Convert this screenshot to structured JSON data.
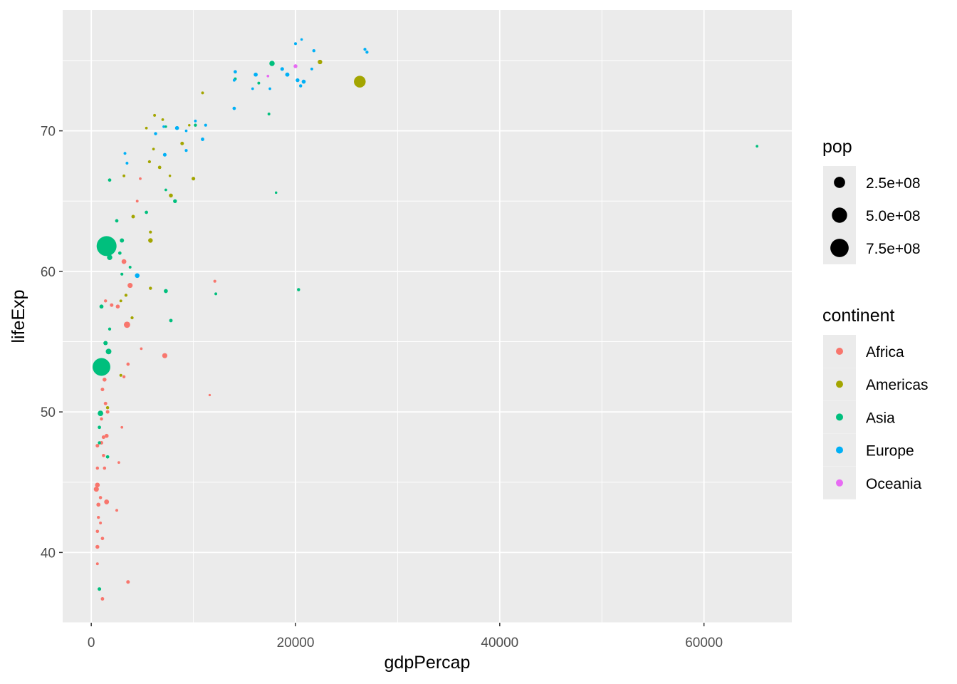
{
  "chart_data": {
    "type": "scatter",
    "title": "",
    "xlabel": "gdpPercap",
    "ylabel": "lifeExp",
    "xlim": [
      -2800,
      68600
    ],
    "ylim": [
      35,
      78.6
    ],
    "x_ticks": [
      0,
      20000,
      40000,
      60000
    ],
    "y_ticks": [
      40,
      50,
      60,
      70
    ],
    "grid": true,
    "size_legend": {
      "title": "pop",
      "entries": [
        {
          "label": "2.5e+08",
          "value": 250000000
        },
        {
          "label": "5.0e+08",
          "value": 500000000
        },
        {
          "label": "7.5e+08",
          "value": 750000000
        }
      ]
    },
    "color_legend": {
      "title": "continent",
      "entries": [
        {
          "label": "Africa",
          "color": "#F8766D"
        },
        {
          "label": "Americas",
          "color": "#A3A500"
        },
        {
          "label": "Asia",
          "color": "#00BF7D"
        },
        {
          "label": "Europe",
          "color": "#00B0F6"
        },
        {
          "label": "Oceania",
          "color": "#E76BF3"
        }
      ]
    },
    "series": [
      {
        "name": "Africa",
        "points": [
          [
            3200,
            60.7,
            30000000.0
          ],
          [
            2000,
            57.6,
            12000000.0
          ],
          [
            1400,
            57.9,
            8000000.0
          ],
          [
            2600,
            57.5,
            17000000.0
          ],
          [
            3800,
            59.0,
            35000000.0
          ],
          [
            3500,
            56.2,
            62000000.0
          ],
          [
            4500,
            65.0,
            5000000.0
          ],
          [
            4800,
            66.6,
            4000000.0
          ],
          [
            12100,
            59.3,
            6000000.0
          ],
          [
            11600,
            51.2,
            2000000.0
          ],
          [
            3600,
            53.4,
            9000000.0
          ],
          [
            4900,
            54.5,
            4000000.0
          ],
          [
            7200,
            54.0,
            35000000.0
          ],
          [
            3200,
            52.5,
            7000000.0
          ],
          [
            1300,
            52.3,
            17000000.0
          ],
          [
            1100,
            51.6,
            12000000.0
          ],
          [
            1400,
            50.6,
            11000000.0
          ],
          [
            1600,
            50.0,
            13000000.0
          ],
          [
            1000,
            49.5,
            8000000.0
          ],
          [
            3000,
            48.9,
            4000000.0
          ],
          [
            1500,
            48.3,
            18000000.0
          ],
          [
            1200,
            48.2,
            13000000.0
          ],
          [
            1000,
            47.8,
            11000000.0
          ],
          [
            600,
            47.6,
            13000000.0
          ],
          [
            1200,
            46.9,
            9000000.0
          ],
          [
            2700,
            46.4,
            4000000.0
          ],
          [
            1300,
            46.0,
            9000000.0
          ],
          [
            600,
            46.0,
            8000000.0
          ],
          [
            600,
            44.8,
            29000000.0
          ],
          [
            500,
            44.5,
            35000000.0
          ],
          [
            900,
            43.9,
            9000000.0
          ],
          [
            1500,
            43.6,
            32000000.0
          ],
          [
            700,
            43.4,
            18000000.0
          ],
          [
            2500,
            43.0,
            5000000.0
          ],
          [
            700,
            42.5,
            7000000.0
          ],
          [
            900,
            42.1,
            5000000.0
          ],
          [
            600,
            41.5,
            9000000.0
          ],
          [
            1100,
            41.0,
            10000000.0
          ],
          [
            600,
            40.4,
            16000000.0
          ],
          [
            600,
            39.2,
            5000000.0
          ],
          [
            3600,
            37.9,
            12000000.0
          ],
          [
            1100,
            36.7,
            11000000.0
          ]
        ]
      },
      {
        "name": "Americas",
        "points": [
          [
            22400,
            74.9,
            25000000.0
          ],
          [
            26300,
            73.5,
            280000000.0
          ],
          [
            10900,
            72.7,
            5000000.0
          ],
          [
            6200,
            71.1,
            5000000.0
          ],
          [
            7000,
            70.8,
            4000000.0
          ],
          [
            5400,
            70.2,
            4000000.0
          ],
          [
            9600,
            70.4,
            3000000.0
          ],
          [
            6100,
            68.7,
            4000000.0
          ],
          [
            8900,
            69.1,
            12000000.0
          ],
          [
            5700,
            67.8,
            7000000.0
          ],
          [
            6700,
            67.4,
            10000000.0
          ],
          [
            3200,
            66.8,
            5000000.0
          ],
          [
            7700,
            66.8,
            3000000.0
          ],
          [
            10000,
            66.6,
            13000000.0
          ],
          [
            7800,
            65.4,
            17000000.0
          ],
          [
            4100,
            63.9,
            12000000.0
          ],
          [
            5800,
            62.8,
            6000000.0
          ],
          [
            5800,
            62.2,
            26000000.0
          ],
          [
            5800,
            58.8,
            8000000.0
          ],
          [
            3400,
            58.3,
            7000000.0
          ],
          [
            2900,
            57.9,
            5000000.0
          ],
          [
            4000,
            56.7,
            7000000.0
          ],
          [
            2900,
            52.6,
            6000000.0
          ],
          [
            1600,
            50.3,
            8000000.0
          ]
        ]
      },
      {
        "name": "Asia",
        "points": [
          [
            17700,
            74.8,
            40000000.0
          ],
          [
            16400,
            73.4,
            5000000.0
          ],
          [
            14100,
            73.7,
            6000000.0
          ],
          [
            17400,
            71.2,
            5000000.0
          ],
          [
            65200,
            68.9,
            4000000.0
          ],
          [
            10200,
            70.4,
            8000000.0
          ],
          [
            7300,
            70.3,
            3000000.0
          ],
          [
            1800,
            66.5,
            10000000.0
          ],
          [
            7300,
            65.8,
            4000000.0
          ],
          [
            18100,
            65.6,
            3000000.0
          ],
          [
            8200,
            65.0,
            15000000.0
          ],
          [
            5400,
            64.2,
            10000000.0
          ],
          [
            2500,
            63.6,
            10000000.0
          ],
          [
            3000,
            62.2,
            21000000.0
          ],
          [
            1500,
            61.8,
            900000000.0
          ],
          [
            1800,
            61.0,
            40000000.0
          ],
          [
            2800,
            61.3,
            10000000.0
          ],
          [
            3800,
            60.3,
            5000000.0
          ],
          [
            3000,
            59.8,
            6000000.0
          ],
          [
            7300,
            58.6,
            18000000.0
          ],
          [
            12200,
            58.4,
            5000000.0
          ],
          [
            20300,
            58.7,
            8000000.0
          ],
          [
            1000,
            57.5,
            18000000.0
          ],
          [
            7800,
            56.5,
            11000000.0
          ],
          [
            1800,
            55.9,
            7000000.0
          ],
          [
            1400,
            54.9,
            22000000.0
          ],
          [
            1700,
            54.3,
            47000000.0
          ],
          [
            1000,
            53.2,
            700000000.0
          ],
          [
            900,
            49.9,
            44000000.0
          ],
          [
            800,
            48.9,
            10000000.0
          ],
          [
            800,
            47.8,
            8000000.0
          ],
          [
            1600,
            46.8,
            10000000.0
          ],
          [
            800,
            37.4,
            12000000.0
          ]
        ]
      },
      {
        "name": "Europe",
        "points": [
          [
            20600,
            76.5,
            3000000.0
          ],
          [
            20000,
            76.2,
            6000000.0
          ],
          [
            26800,
            75.8,
            6000000.0
          ],
          [
            27000,
            75.6,
            7000000.0
          ],
          [
            21800,
            75.7,
            8000000.0
          ],
          [
            14100,
            74.2,
            10000000.0
          ],
          [
            18700,
            74.4,
            13000000.0
          ],
          [
            19200,
            74.0,
            20000000.0
          ],
          [
            16100,
            74.0,
            18000000.0
          ],
          [
            20200,
            73.6,
            15000000.0
          ],
          [
            20800,
            73.5,
            18000000.0
          ],
          [
            20500,
            73.2,
            8000000.0
          ],
          [
            14000,
            73.6,
            5000000.0
          ],
          [
            15800,
            73.0,
            4000000.0
          ],
          [
            17500,
            73.0,
            4000000.0
          ],
          [
            21600,
            74.4,
            5000000.0
          ],
          [
            14000,
            71.6,
            10000000.0
          ],
          [
            10200,
            70.7,
            5000000.0
          ],
          [
            11200,
            70.4,
            6000000.0
          ],
          [
            8400,
            70.2,
            17000000.0
          ],
          [
            9300,
            70.0,
            4000000.0
          ],
          [
            7100,
            70.3,
            4000000.0
          ],
          [
            10900,
            69.4,
            11000000.0
          ],
          [
            6300,
            69.8,
            8000000.0
          ],
          [
            9300,
            68.6,
            6000000.0
          ],
          [
            7200,
            68.3,
            13000000.0
          ],
          [
            3300,
            68.4,
            5000000.0
          ],
          [
            3500,
            67.7,
            5000000.0
          ],
          [
            4500,
            59.7,
            28000000.0
          ]
        ]
      },
      {
        "name": "Oceania",
        "points": [
          [
            20000,
            74.6,
            16000000.0
          ],
          [
            17300,
            73.9,
            4000000.0
          ]
        ]
      }
    ]
  }
}
